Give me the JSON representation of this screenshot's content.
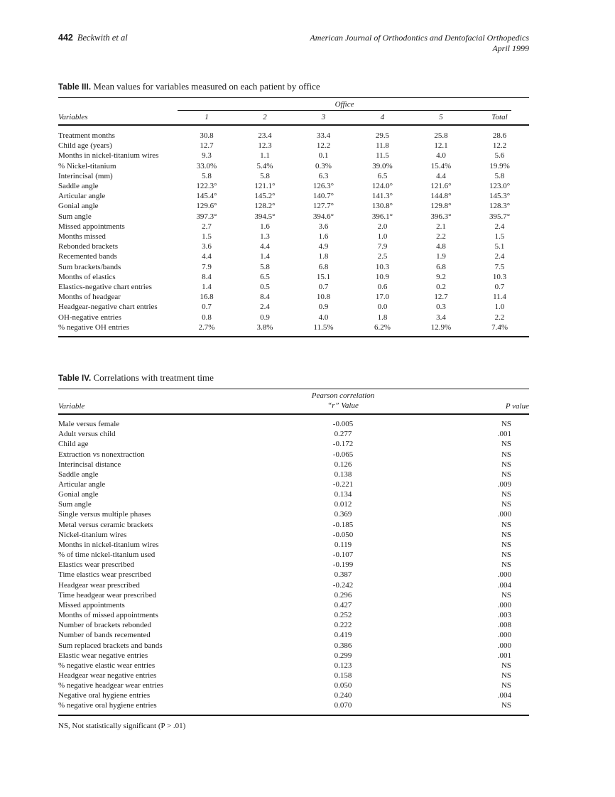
{
  "page_header": {
    "page_number": "442",
    "authors": "Beckwith et al",
    "journal_line1": "American Journal of Orthodontics and Dentofacial Orthopedics",
    "journal_line2": "April 1999"
  },
  "table3": {
    "label": "Table III.",
    "title": "Mean values for variables measured on each patient by office",
    "spanner": "Office",
    "headers": {
      "variable": "Variables",
      "cols": [
        "1",
        "2",
        "3",
        "4",
        "5",
        "Total"
      ]
    },
    "rows": [
      {
        "variable": "Treatment months",
        "values": [
          "30.8",
          "23.4",
          "33.4",
          "29.5",
          "25.8",
          "28.6"
        ]
      },
      {
        "variable": "Child age (years)",
        "values": [
          "12.7",
          "12.3",
          "12.2",
          "11.8",
          "12.1",
          "12.2"
        ]
      },
      {
        "variable": "Months in nickel-titanium wires",
        "values": [
          "9.3",
          "1.1",
          "0.1",
          "11.5",
          "4.0",
          "5.6"
        ]
      },
      {
        "variable": "% Nickel-titanium",
        "values": [
          "33.0%",
          "5.4%",
          "0.3%",
          "39.0%",
          "15.4%",
          "19.9%"
        ]
      },
      {
        "variable": "Interincisal (mm)",
        "values": [
          "5.8",
          "5.8",
          "6.3",
          "6.5",
          "4.4",
          "5.8"
        ]
      },
      {
        "variable": "Saddle angle",
        "values": [
          "122.3°",
          "121.1°",
          "126.3°",
          "124.0°",
          "121.6°",
          "123.0°"
        ]
      },
      {
        "variable": "Articular angle",
        "values": [
          "145.4°",
          "145.2°",
          "140.7°",
          "141.3°",
          "144.8°",
          "145.3°"
        ]
      },
      {
        "variable": "Gonial angle",
        "values": [
          "129.6°",
          "128.2°",
          "127.7°",
          "130.8°",
          "129.8°",
          "128.3°"
        ]
      },
      {
        "variable": "Sum angle",
        "values": [
          "397.3°",
          "394.5°",
          "394.6°",
          "396.1°",
          "396.3°",
          "395.7°"
        ]
      },
      {
        "variable": "Missed appointments",
        "values": [
          "2.7",
          "1.6",
          "3.6",
          "2.0",
          "2.1",
          "2.4"
        ]
      },
      {
        "variable": "Months missed",
        "values": [
          "1.5",
          "1.3",
          "1.6",
          "1.0",
          "2.2",
          "1.5"
        ]
      },
      {
        "variable": "Rebonded brackets",
        "values": [
          "3.6",
          "4.4",
          "4.9",
          "7.9",
          "4.8",
          "5.1"
        ]
      },
      {
        "variable": "Recemented bands",
        "values": [
          "4.4",
          "1.4",
          "1.8",
          "2.5",
          "1.9",
          "2.4"
        ]
      },
      {
        "variable": "Sum brackets/bands",
        "values": [
          "7.9",
          "5.8",
          "6.8",
          "10.3",
          "6.8",
          "7.5"
        ]
      },
      {
        "variable": "Months of elastics",
        "values": [
          "8.4",
          "6.5",
          "15.1",
          "10.9",
          "9.2",
          "10.3"
        ]
      },
      {
        "variable": "Elastics-negative chart entries",
        "values": [
          "1.4",
          "0.5",
          "0.7",
          "0.6",
          "0.2",
          "0.7"
        ]
      },
      {
        "variable": "Months of headgear",
        "values": [
          "16.8",
          "8.4",
          "10.8",
          "17.0",
          "12.7",
          "11.4"
        ]
      },
      {
        "variable": "Headgear-negative chart entries",
        "values": [
          "0.7",
          "2.4",
          "0.9",
          "0.0",
          "0.3",
          "1.0"
        ]
      },
      {
        "variable": "OH-negative entries",
        "values": [
          "0.8",
          "0.9",
          "4.0",
          "1.8",
          "3.4",
          "2.2"
        ]
      },
      {
        "variable": "% negative OH entries",
        "values": [
          "2.7%",
          "3.8%",
          "11.5%",
          "6.2%",
          "12.9%",
          "7.4%"
        ]
      }
    ]
  },
  "table4": {
    "label": "Table IV.",
    "title": "Correlations with treatment time",
    "headers": {
      "variable": "Variable",
      "r_line1": "Pearson correlation",
      "r_line2": "“r” Value",
      "p": "P value"
    },
    "rows": [
      {
        "variable": "Male versus female",
        "r": "-0.005",
        "p": "NS"
      },
      {
        "variable": "Adult versus child",
        "r": "0.277",
        "p": ".001"
      },
      {
        "variable": "Child age",
        "r": "-0.172",
        "p": "NS"
      },
      {
        "variable": "Extraction vs nonextraction",
        "r": "-0.065",
        "p": "NS"
      },
      {
        "variable": "Interincisal distance",
        "r": "0.126",
        "p": "NS"
      },
      {
        "variable": "Saddle angle",
        "r": "0.138",
        "p": "NS"
      },
      {
        "variable": "Articular angle",
        "r": "-0.221",
        "p": ".009"
      },
      {
        "variable": "Gonial angle",
        "r": "0.134",
        "p": "NS"
      },
      {
        "variable": "Sum angle",
        "r": "0.012",
        "p": "NS"
      },
      {
        "variable": "Single versus multiple phases",
        "r": "0.369",
        "p": ".000"
      },
      {
        "variable": "Metal versus ceramic brackets",
        "r": "-0.185",
        "p": "NS"
      },
      {
        "variable": "Nickel-titanium wires",
        "r": "-0.050",
        "p": "NS"
      },
      {
        "variable": "Months in nickel-titanium wires",
        "r": "0.119",
        "p": "NS"
      },
      {
        "variable": "% of time nickel-titanium used",
        "r": "-0.107",
        "p": "NS"
      },
      {
        "variable": "Elastics wear prescribed",
        "r": "-0.199",
        "p": "NS"
      },
      {
        "variable": "Time elastics wear prescribed",
        "r": "0.387",
        "p": ".000"
      },
      {
        "variable": "Headgear wear prescribed",
        "r": "-0.242",
        "p": ".004"
      },
      {
        "variable": "Time headgear wear prescribed",
        "r": "0.296",
        "p": "NS"
      },
      {
        "variable": "Missed appointments",
        "r": "0.427",
        "p": ".000"
      },
      {
        "variable": "Months of missed appointments",
        "r": "0.252",
        "p": ".003"
      },
      {
        "variable": "Number of brackets rebonded",
        "r": "0.222",
        "p": ".008"
      },
      {
        "variable": "Number of bands recemented",
        "r": "0.419",
        "p": ".000"
      },
      {
        "variable": "Sum replaced brackets and bands",
        "r": "0.386",
        "p": ".000"
      },
      {
        "variable": "Elastic wear negative entries",
        "r": "0.299",
        "p": ".001"
      },
      {
        "variable": "% negative elastic wear entries",
        "r": "0.123",
        "p": "NS"
      },
      {
        "variable": "Headgear wear negative entries",
        "r": "0.158",
        "p": "NS"
      },
      {
        "variable": "% negative headgear wear entries",
        "r": "0.050",
        "p": "NS"
      },
      {
        "variable": "Negative oral hygiene entries",
        "r": "0.240",
        "p": ".004"
      },
      {
        "variable": "% negative oral hygiene entries",
        "r": "0.070",
        "p": "NS"
      }
    ],
    "footnote": "NS, Not statistically significant (P > .01)"
  }
}
